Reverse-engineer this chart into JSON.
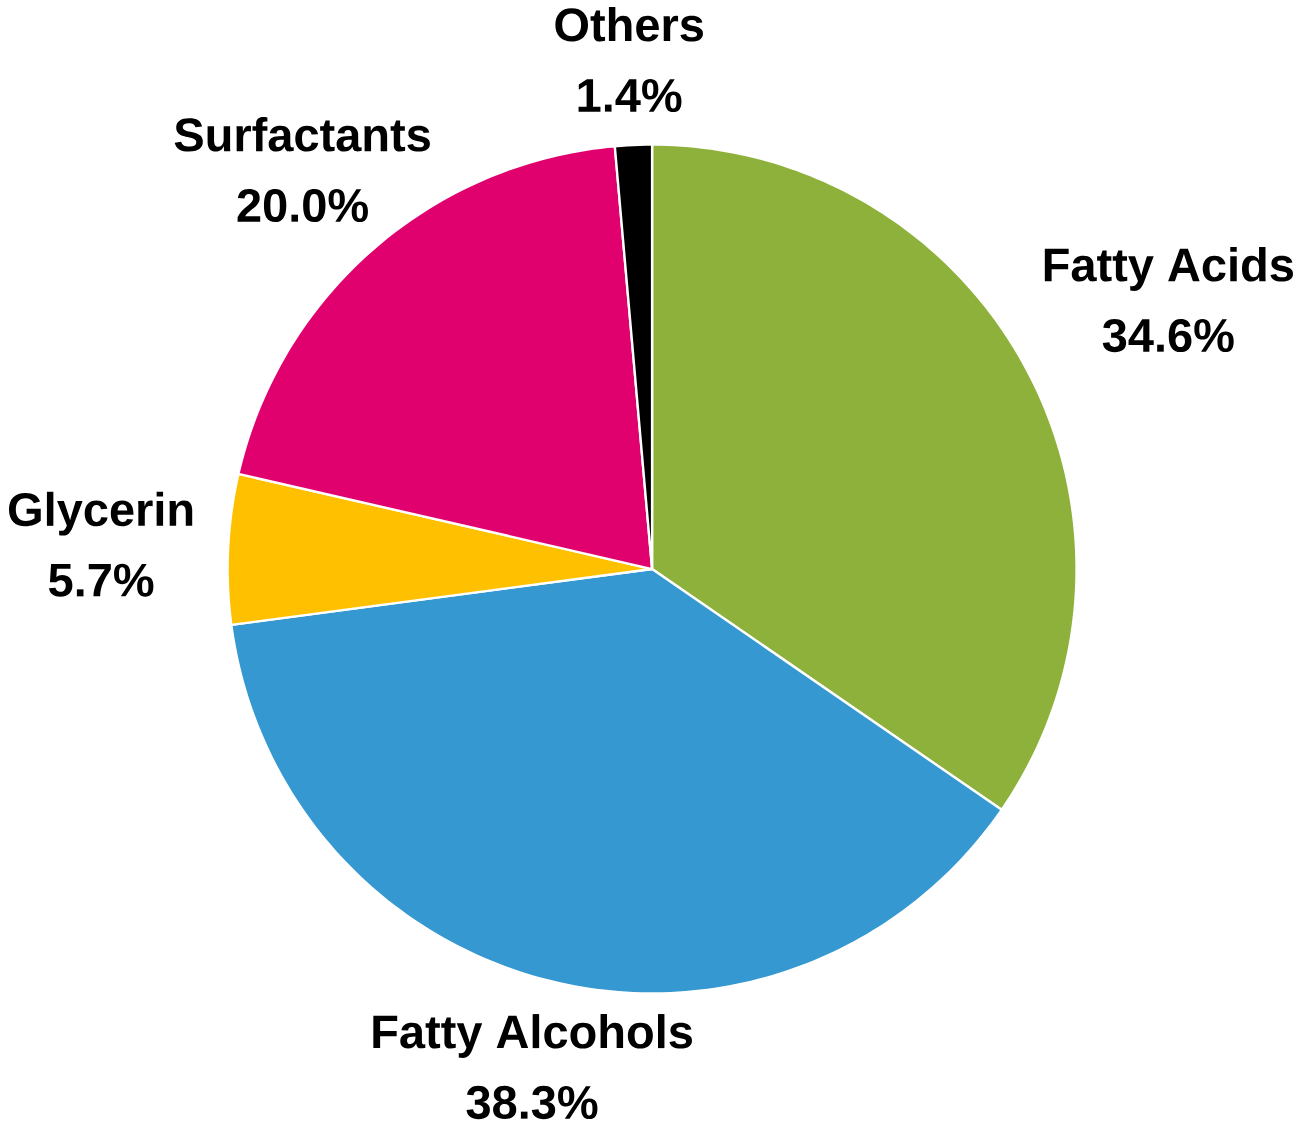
{
  "chart_data": {
    "type": "pie",
    "categories": [
      "Fatty Acids",
      "Fatty Alcohols",
      "Glycerin",
      "Surfactants",
      "Others"
    ],
    "values": [
      34.6,
      38.3,
      5.7,
      20.0,
      1.4
    ],
    "value_labels": [
      "34.6%",
      "38.3%",
      "5.7%",
      "20.0%",
      "1.4%"
    ],
    "colors": [
      "#8db13a",
      "#3598d0",
      "#ffc000",
      "#e0006e",
      "#000000"
    ]
  }
}
